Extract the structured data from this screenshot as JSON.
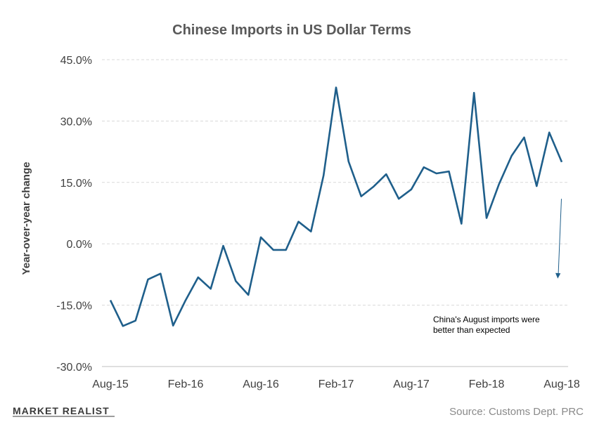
{
  "chart_data": {
    "type": "line",
    "title": "Chinese Imports in US Dollar Terms",
    "xlabel": "",
    "ylabel": "Year-over-year change",
    "ylim": [
      -30,
      45
    ],
    "y_ticks": [
      "45.0%",
      "30.0%",
      "15.0%",
      "0.0%",
      "-15.0%",
      "-30.0%"
    ],
    "y_tick_values": [
      45,
      30,
      15,
      0,
      -15,
      -30
    ],
    "x_ticks": [
      "Aug-15",
      "Feb-16",
      "Aug-16",
      "Feb-17",
      "Aug-17",
      "Feb-18",
      "Aug-18"
    ],
    "x_tick_indices": [
      0,
      6,
      12,
      18,
      24,
      30,
      36
    ],
    "grid": true,
    "series": [
      {
        "color": "#1f5f8b",
        "values": [
          -13.8,
          -20.1,
          -18.8,
          -8.7,
          -7.3,
          -20.0,
          -13.8,
          -8.2,
          -11.0,
          -0.5,
          -9.1,
          -12.5,
          1.6,
          -1.5,
          -1.5,
          5.4,
          3.0,
          16.7,
          38.2,
          20.1,
          11.6,
          14.0,
          17.0,
          11.0,
          13.3,
          18.7,
          17.2,
          17.7,
          4.9,
          36.9,
          6.3,
          14.6,
          21.5,
          26.0,
          14.1,
          27.2,
          20.0
        ]
      }
    ],
    "annotation": {
      "line1": "China's August imports were",
      "line2": "better than expected",
      "arrow_from_index": 36,
      "arrow_from_value": 11,
      "arrow_to_value": -8.5
    }
  },
  "footer": {
    "source": "Source: Customs Dept. PRC",
    "logo": "MARKET REALIST"
  },
  "colors": {
    "line": "#1f5f8b",
    "grid": "#d9d9d9",
    "axis": "#bfbfbf"
  }
}
